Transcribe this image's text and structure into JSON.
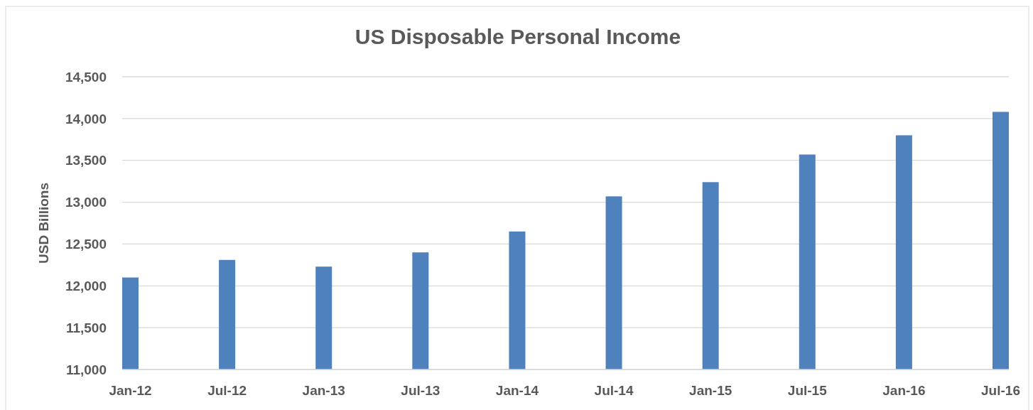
{
  "chart_data": {
    "type": "bar",
    "title": "US Disposable Personal Income",
    "ylabel": "USD Billions",
    "categories": [
      "Jan-12",
      "Jul-12",
      "Jan-13",
      "Jul-13",
      "Jan-14",
      "Jul-14",
      "Jan-15",
      "Jul-15",
      "Jan-16",
      "Jul-16"
    ],
    "values": [
      12100,
      12310,
      12230,
      12400,
      12650,
      13070,
      13240,
      13570,
      13800,
      14080
    ],
    "color": "#4f81bd",
    "ylim": [
      11000,
      14500
    ],
    "yticks": [
      {
        "value": 11000,
        "label": "11,000"
      },
      {
        "value": 11500,
        "label": "11,500"
      },
      {
        "value": 12000,
        "label": "12,000"
      },
      {
        "value": 12500,
        "label": "12,500"
      },
      {
        "value": 13000,
        "label": "13,000"
      },
      {
        "value": 13500,
        "label": "13,500"
      },
      {
        "value": 14000,
        "label": "14,000"
      },
      {
        "value": 14500,
        "label": "14,500"
      }
    ],
    "grid": "y"
  }
}
